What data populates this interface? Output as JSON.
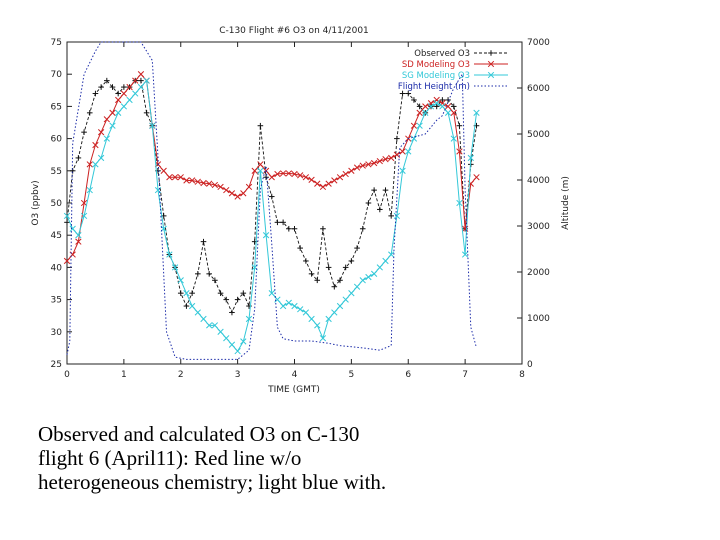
{
  "caption": "Observed and calculated O3 on C-130 flight 6 (April11): Red line w/o heterogeneous chemistry; light blue with.",
  "chart_data": {
    "type": "line",
    "title": "C-130 Flight #6 O3 on 4/11/2001",
    "xlabel": "TIME (GMT)",
    "ylabel": "O3 (ppbv)",
    "y2label": "Altitude (m)",
    "xlim": [
      0,
      8
    ],
    "ylim": [
      25,
      75
    ],
    "y2lim": [
      0,
      7000
    ],
    "x_ticks": [
      "0",
      "1",
      "2",
      "3",
      "4",
      "5",
      "6",
      "7",
      "8"
    ],
    "y_ticks": [
      "25",
      "30",
      "35",
      "40",
      "45",
      "50",
      "55",
      "60",
      "65",
      "70",
      "75"
    ],
    "y2_ticks": [
      "0",
      "1000",
      "2000",
      "3000",
      "4000",
      "5000",
      "6000",
      "7000"
    ],
    "legend_position": "top-right",
    "colors": {
      "observed": "#111111",
      "no_het": "#cc2222",
      "het": "#33c8d8",
      "altitude": "#1a2aa8"
    },
    "series": [
      {
        "name": "Observed O3",
        "axis": "left",
        "marker": "+",
        "x": [
          0.0,
          0.1,
          0.2,
          0.3,
          0.4,
          0.5,
          0.6,
          0.7,
          0.8,
          0.9,
          1.0,
          1.1,
          1.2,
          1.3,
          1.4,
          1.5,
          1.6,
          1.7,
          1.8,
          1.9,
          2.0,
          2.1,
          2.2,
          2.3,
          2.4,
          2.5,
          2.6,
          2.7,
          2.8,
          2.9,
          3.0,
          3.1,
          3.2,
          3.3,
          3.4,
          3.5,
          3.6,
          3.7,
          3.8,
          3.9,
          4.0,
          4.1,
          4.2,
          4.3,
          4.4,
          4.5,
          4.6,
          4.7,
          4.8,
          4.9,
          5.0,
          5.1,
          5.2,
          5.3,
          5.4,
          5.5,
          5.6,
          5.7,
          5.8,
          5.9,
          6.0,
          6.1,
          6.2,
          6.3,
          6.4,
          6.5,
          6.6,
          6.7,
          6.8,
          6.9,
          7.0,
          7.1,
          7.2
        ],
        "y": [
          47,
          55,
          57,
          61,
          64,
          67,
          68,
          69,
          68,
          67,
          68,
          68,
          69,
          69,
          64,
          62,
          55,
          48,
          42,
          40,
          36,
          34,
          36,
          39,
          44,
          39,
          38,
          36,
          35,
          33,
          35,
          36,
          34,
          44,
          62,
          54,
          51,
          47,
          47,
          46,
          46,
          43,
          41,
          39,
          38,
          46,
          40,
          37,
          38,
          40,
          41,
          43,
          46,
          50,
          52,
          49,
          52,
          48,
          60,
          67,
          67,
          66,
          65,
          64,
          65,
          65,
          66,
          66,
          65,
          62,
          46,
          56,
          62
        ]
      },
      {
        "name": "SD Modeling O3",
        "axis": "left",
        "marker": "x",
        "x": [
          0.0,
          0.1,
          0.2,
          0.3,
          0.4,
          0.5,
          0.6,
          0.7,
          0.8,
          0.9,
          1.0,
          1.1,
          1.2,
          1.3,
          1.4,
          1.5,
          1.6,
          1.7,
          1.8,
          1.9,
          2.0,
          2.1,
          2.2,
          2.3,
          2.4,
          2.5,
          2.6,
          2.7,
          2.8,
          2.9,
          3.0,
          3.1,
          3.2,
          3.3,
          3.4,
          3.5,
          3.6,
          3.7,
          3.8,
          3.9,
          4.0,
          4.1,
          4.2,
          4.3,
          4.4,
          4.5,
          4.6,
          4.7,
          4.8,
          4.9,
          5.0,
          5.1,
          5.2,
          5.3,
          5.4,
          5.5,
          5.6,
          5.7,
          5.8,
          5.9,
          6.0,
          6.1,
          6.2,
          6.3,
          6.4,
          6.5,
          6.6,
          6.7,
          6.8,
          6.9,
          7.0,
          7.1,
          7.2
        ],
        "y": [
          41,
          42,
          44,
          50,
          56,
          59,
          61,
          63,
          64,
          66,
          67,
          68,
          69,
          70,
          69,
          62,
          56,
          55,
          54,
          54,
          54,
          53.5,
          53.5,
          53.3,
          53.1,
          53,
          52.8,
          52.5,
          52,
          51.5,
          51,
          51.5,
          52.5,
          55,
          56,
          55,
          54,
          54.5,
          54.6,
          54.6,
          54.5,
          54.3,
          54,
          53.6,
          53,
          52.5,
          53,
          53.5,
          54,
          54.5,
          55,
          55.5,
          55.8,
          56,
          56.2,
          56.5,
          56.8,
          57,
          57.5,
          58,
          60,
          62,
          64,
          65,
          65.5,
          66,
          65.5,
          65,
          64,
          58,
          46,
          53,
          54
        ]
      },
      {
        "name": "SG Modeling O3",
        "axis": "left",
        "marker": "x",
        "x": [
          0.0,
          0.1,
          0.2,
          0.3,
          0.4,
          0.5,
          0.6,
          0.7,
          0.8,
          0.9,
          1.0,
          1.1,
          1.2,
          1.3,
          1.4,
          1.5,
          1.6,
          1.7,
          1.8,
          1.9,
          2.0,
          2.1,
          2.2,
          2.3,
          2.4,
          2.5,
          2.6,
          2.7,
          2.8,
          2.9,
          3.0,
          3.1,
          3.2,
          3.3,
          3.4,
          3.5,
          3.6,
          3.7,
          3.8,
          3.9,
          4.0,
          4.1,
          4.2,
          4.3,
          4.4,
          4.5,
          4.6,
          4.7,
          4.8,
          4.9,
          5.0,
          5.1,
          5.2,
          5.3,
          5.4,
          5.5,
          5.6,
          5.7,
          5.8,
          5.9,
          6.0,
          6.1,
          6.2,
          6.3,
          6.4,
          6.5,
          6.6,
          6.7,
          6.8,
          6.9,
          7.0,
          7.1,
          7.2
        ],
        "y": [
          48,
          46,
          45,
          48,
          52,
          56,
          57,
          60,
          62,
          64,
          65,
          66,
          67,
          68,
          69,
          62,
          52,
          46,
          42,
          40,
          38,
          36,
          34,
          33,
          32,
          31,
          31,
          30,
          29,
          28,
          27,
          28.5,
          32,
          40,
          55,
          45,
          36,
          35,
          34,
          34.5,
          34,
          33.5,
          33,
          32,
          31,
          29,
          32,
          33,
          34,
          35,
          36,
          37,
          38,
          38.5,
          39,
          40,
          41,
          42,
          48,
          55,
          58,
          60,
          62,
          64,
          65,
          65.5,
          65,
          64,
          60,
          50,
          42,
          57,
          64
        ]
      },
      {
        "name": "Flight Height (m)",
        "axis": "right",
        "marker": "none",
        "x": [
          0.0,
          0.05,
          0.1,
          0.3,
          0.5,
          0.6,
          0.75,
          1.0,
          1.3,
          1.5,
          1.6,
          1.75,
          1.9,
          2.1,
          2.5,
          3.0,
          3.2,
          3.3,
          3.4,
          3.5,
          3.6,
          3.7,
          3.8,
          4.0,
          4.3,
          4.6,
          4.8,
          5.2,
          5.5,
          5.7,
          5.75,
          5.85,
          6.0,
          6.3,
          6.5,
          6.6,
          6.8,
          6.95,
          7.0,
          7.1,
          7.2
        ],
        "y": [
          200,
          500,
          4800,
          6300,
          6800,
          7000,
          7000,
          7000,
          7000,
          6600,
          4500,
          700,
          150,
          100,
          100,
          100,
          300,
          1200,
          3800,
          4300,
          2600,
          800,
          550,
          500,
          500,
          450,
          400,
          350,
          300,
          400,
          2500,
          4700,
          4900,
          5000,
          5300,
          5400,
          6000,
          6300,
          3800,
          800,
          350
        ]
      }
    ]
  }
}
